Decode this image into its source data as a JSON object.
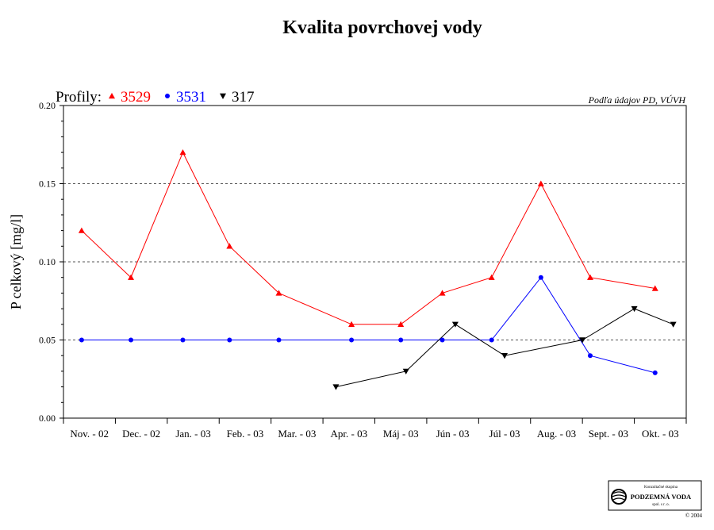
{
  "chart_data": {
    "type": "line",
    "title": "Kvalita povrchovej vody",
    "ylabel": "P celkový [mg/l]",
    "xlabel": "",
    "ylim": [
      0,
      0.2
    ],
    "yticks": [
      "0.00",
      "0.05",
      "0.10",
      "0.15",
      "0.20"
    ],
    "grid": "dashed horizontal at 0.05, 0.10, 0.15",
    "legend_prefix": "Profily:",
    "legend_placement": "top-left",
    "source_note": "Podľa údajov PD, VÚVH",
    "categories": [
      "Nov. - 02",
      "Dec. - 02",
      "Jan. - 03",
      "Feb. - 03",
      "Mar. - 03",
      "Apr. - 03",
      "Máj - 03",
      "Jún - 03",
      "Júl - 03",
      "Aug. - 03",
      "Sept. - 03",
      "Okt. - 03"
    ],
    "series": [
      {
        "name": "3529",
        "color": "#ff0000",
        "marker": "triangle-up",
        "points": [
          [
            0.35,
            0.12
          ],
          [
            1.3,
            0.09
          ],
          [
            2.3,
            0.17
          ],
          [
            3.2,
            0.11
          ],
          [
            4.15,
            0.08
          ],
          [
            5.55,
            0.06
          ],
          [
            6.5,
            0.06
          ],
          [
            7.3,
            0.08
          ],
          [
            8.25,
            0.09
          ],
          [
            9.2,
            0.15
          ],
          [
            10.15,
            0.09
          ],
          [
            11.4,
            0.083
          ]
        ]
      },
      {
        "name": "3531",
        "color": "#0000ff",
        "marker": "circle",
        "points": [
          [
            0.35,
            0.05
          ],
          [
            1.3,
            0.05
          ],
          [
            2.3,
            0.05
          ],
          [
            3.2,
            0.05
          ],
          [
            4.15,
            0.05
          ],
          [
            5.55,
            0.05
          ],
          [
            6.5,
            0.05
          ],
          [
            7.3,
            0.05
          ],
          [
            8.25,
            0.05
          ],
          [
            9.2,
            0.09
          ],
          [
            10.15,
            0.04
          ],
          [
            11.4,
            0.029
          ]
        ]
      },
      {
        "name": "317",
        "color": "#000000",
        "marker": "triangle-down",
        "points": [
          [
            5.25,
            0.02
          ],
          [
            6.6,
            0.03
          ],
          [
            7.55,
            0.06
          ],
          [
            8.5,
            0.04
          ],
          [
            10.0,
            0.05
          ],
          [
            11.0,
            0.07
          ],
          [
            11.75,
            0.06
          ]
        ]
      }
    ]
  },
  "logo": {
    "line1": "Konzultačné skupina",
    "line2": "PODZEMNÁ VODA",
    "line3": "spol. s r. o.",
    "copyright": "© 2004"
  }
}
